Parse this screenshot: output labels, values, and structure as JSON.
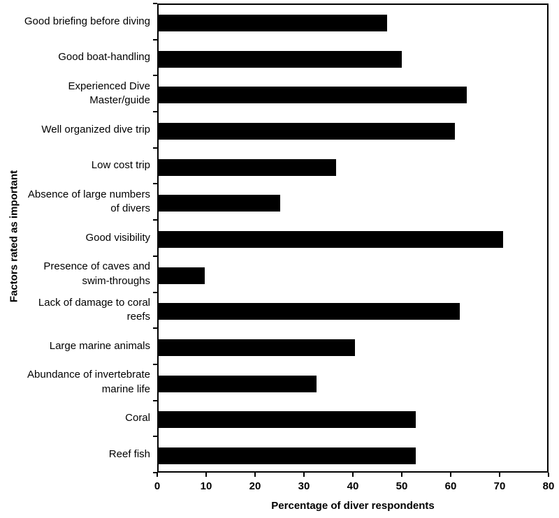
{
  "chart_data": {
    "type": "bar",
    "orientation": "horizontal",
    "title": "",
    "xlabel": "Percentage of diver respondents",
    "ylabel": "Factors rated as important",
    "xlim": [
      0,
      80
    ],
    "xticks": [
      0,
      10,
      20,
      30,
      40,
      50,
      60,
      70,
      80
    ],
    "grid": false,
    "legend": false,
    "bar_color": "#000000",
    "axis_color": "#000000",
    "background_color": "#ffffff",
    "categories": [
      "Good briefing before diving",
      "Good boat-handling",
      "Experienced Dive\nMaster/guide",
      "Well organized dive trip",
      "Low cost trip",
      "Absence of large numbers\nof divers",
      "Good visibility",
      "Presence of caves and\nswim-throughs",
      "Lack of damage to coral\nreefs",
      "Large marine animals",
      "Abundance of invertebrate\nmarine life",
      "Coral",
      "Reef fish"
    ],
    "values": [
      47,
      50,
      63.5,
      61,
      36.5,
      25,
      71,
      9.5,
      62,
      40.5,
      32.5,
      53,
      53
    ]
  }
}
